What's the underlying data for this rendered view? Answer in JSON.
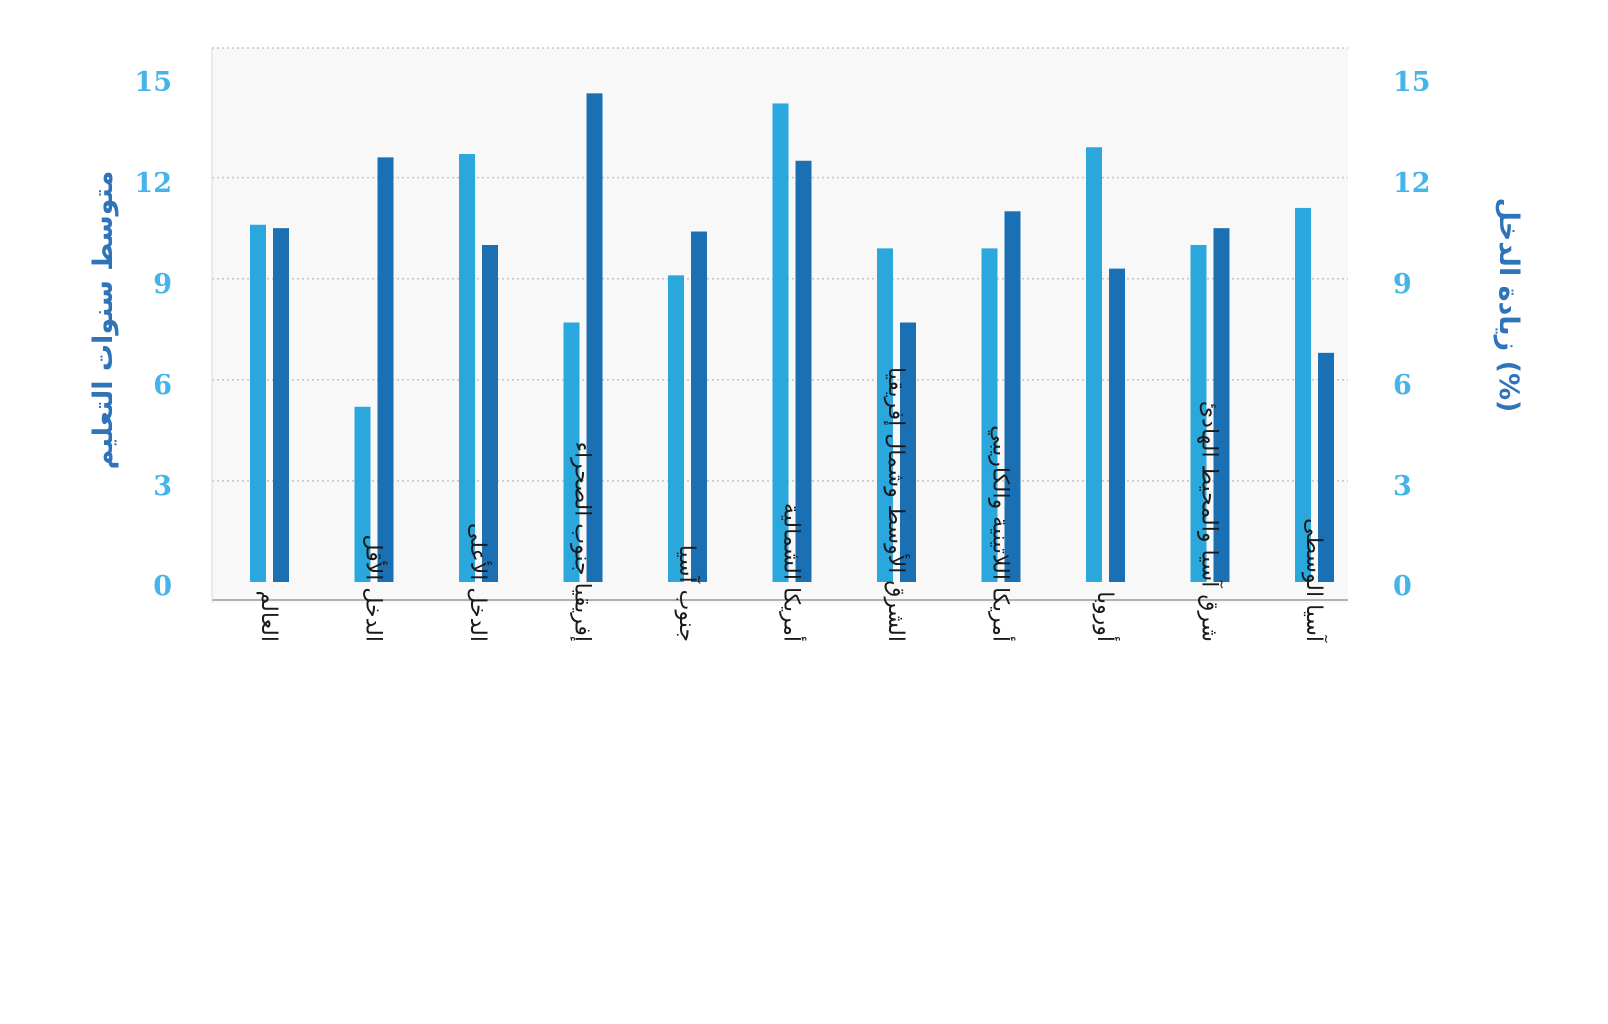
{
  "chart_data": {
    "type": "bar",
    "categories": [
      "العالم",
      "الدخل الأقل",
      "الدخل الأعلى",
      "إفريقيا جنوب الصحراء",
      "جنوب آسيا",
      "أمريكا الشمالية",
      "الشرق الأوسط وشمال إفريقيا",
      "أمريكا اللاتينية والكاريبي",
      "أوروبا",
      "شرق آسيا والمحيط الهادئ",
      "آسيا الوسطى"
    ],
    "series": [
      {
        "axis": "left",
        "color": "#2aa7dc",
        "values": [
          10.6,
          5.2,
          12.7,
          7.7,
          9.1,
          14.2,
          9.9,
          9.9,
          12.9,
          10.0,
          11.1
        ]
      },
      {
        "axis": "right",
        "color": "#1b6fb3",
        "values": [
          10.5,
          12.6,
          10.0,
          14.5,
          10.4,
          12.5,
          7.7,
          11.0,
          9.3,
          10.5,
          6.8
        ]
      }
    ],
    "ylabel_left": "متوسط سنوات التعليم",
    "ylabel_right": "زيادة الدخل (%)",
    "ylim_left": [
      0,
      15
    ],
    "ylim_right": [
      0,
      15
    ],
    "yticks_left": [
      "0",
      "3",
      "6",
      "9",
      "12",
      "15"
    ],
    "yticks_right": [
      "0",
      "3",
      "6",
      "9",
      "12",
      "15"
    ],
    "grid": true,
    "colors": {
      "tick_left": "#45b4e8",
      "tick_right": "#45b4e8",
      "label_left": "#2f73b8",
      "label_right": "#2f73b8",
      "plot_background": "#f8f8f8",
      "grid": "#c4c4c4",
      "axis": "#9a9a9a"
    }
  }
}
